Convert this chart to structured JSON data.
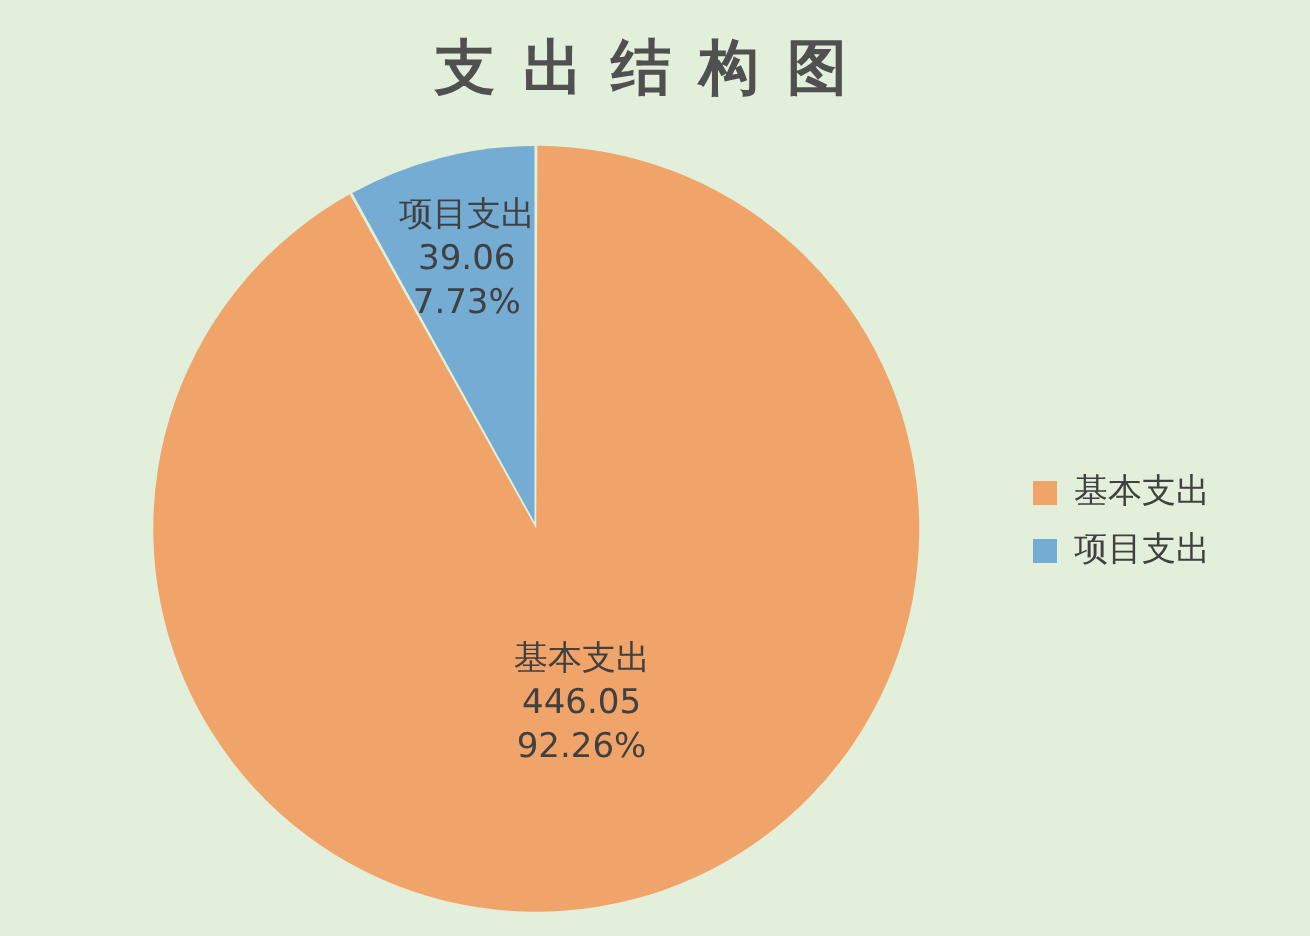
{
  "chart_data": {
    "type": "pie",
    "title": "支出结构图",
    "categories": [
      "基本支出",
      "项目支出"
    ],
    "values": [
      446.05,
      39.06
    ],
    "colors": [
      "#f0a46a",
      "#75acd4"
    ],
    "value_labels": [
      "446.05\n92.26%",
      "39.06\n7.73%"
    ],
    "legend": "right"
  }
}
